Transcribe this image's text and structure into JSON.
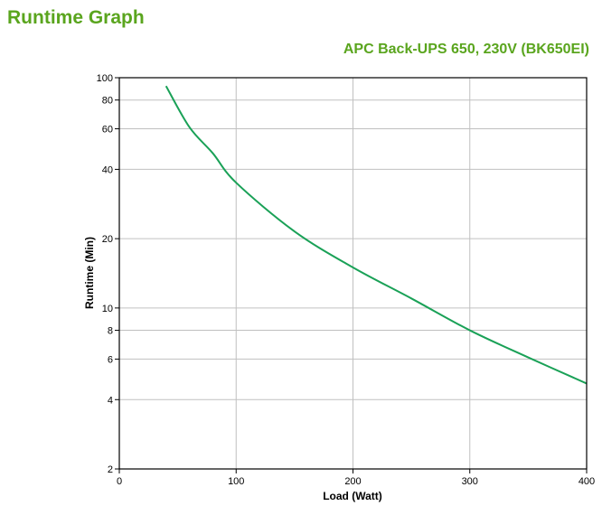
{
  "page": {
    "title": "Runtime Graph",
    "subtitle": "APC Back-UPS 650, 230V (BK650EI)"
  },
  "chart_data": {
    "type": "line",
    "title": "APC Back-UPS 650, 230V (BK650EI)",
    "xlabel": "Load (Watt)",
    "ylabel": "Runtime (Min)",
    "xlim": [
      0,
      400
    ],
    "ylim": [
      2,
      100
    ],
    "yscale": "log",
    "grid": true,
    "x_ticks": [
      0,
      100,
      200,
      300,
      400
    ],
    "y_ticks": [
      2,
      4,
      6,
      8,
      10,
      20,
      40,
      60,
      80,
      100
    ],
    "line_color": "#1aa157",
    "series": [
      {
        "x": [
          40,
          60,
          80,
          100,
          150,
          200,
          250,
          300,
          350,
          400
        ],
        "y": [
          92,
          61,
          47,
          35,
          21.5,
          15,
          11,
          8,
          6.1,
          4.7
        ]
      }
    ]
  }
}
